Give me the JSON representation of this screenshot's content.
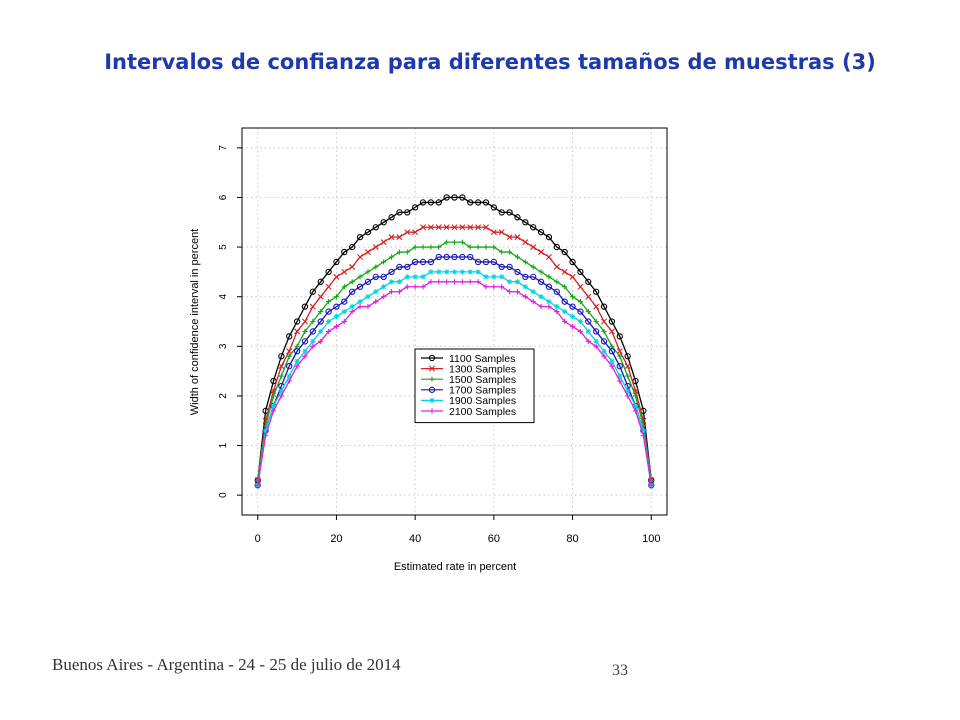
{
  "slide": {
    "title": "Intervalos de confianza para diferentes tamaños de muestras (3)",
    "footer": "Buenos Aires - Argentina - 24 - 25 de julio de 2014",
    "page_number": "33"
  },
  "chart_data": {
    "type": "line",
    "xlabel": "Estimated rate in percent",
    "ylabel": "Width of confidence interval in percent",
    "xlim": [
      -4,
      104
    ],
    "ylim": [
      -0.4,
      7.4
    ],
    "xticks": [
      0,
      20,
      40,
      60,
      80,
      100
    ],
    "yticks": [
      0,
      1,
      2,
      3,
      4,
      5,
      6,
      7
    ],
    "grid": true,
    "legend_position": "center",
    "x": [
      0,
      2,
      4,
      6,
      8,
      10,
      12,
      14,
      16,
      18,
      20,
      22,
      24,
      26,
      28,
      30,
      32,
      34,
      36,
      38,
      40,
      42,
      44,
      46,
      48,
      50,
      52,
      54,
      56,
      58,
      60,
      62,
      64,
      66,
      68,
      70,
      72,
      74,
      76,
      78,
      80,
      82,
      84,
      86,
      88,
      90,
      92,
      94,
      96,
      98,
      100
    ],
    "series": [
      {
        "name": "1100 Samples",
        "color": "#000000",
        "marker": "circle",
        "values": [
          0.3,
          1.7,
          2.3,
          2.8,
          3.2,
          3.5,
          3.8,
          4.1,
          4.3,
          4.5,
          4.7,
          4.9,
          5.0,
          5.2,
          5.3,
          5.4,
          5.5,
          5.6,
          5.7,
          5.7,
          5.8,
          5.9,
          5.9,
          5.9,
          6.0,
          6.0,
          6.0,
          5.9,
          5.9,
          5.9,
          5.8,
          5.7,
          5.7,
          5.6,
          5.5,
          5.4,
          5.3,
          5.2,
          5.0,
          4.9,
          4.7,
          4.5,
          4.3,
          4.1,
          3.8,
          3.5,
          3.2,
          2.8,
          2.3,
          1.7,
          0.3
        ]
      },
      {
        "name": "1300 Samples",
        "color": "#d62020",
        "marker": "x",
        "values": [
          0.3,
          1.5,
          2.1,
          2.6,
          2.9,
          3.3,
          3.5,
          3.8,
          4.0,
          4.2,
          4.4,
          4.5,
          4.6,
          4.8,
          4.9,
          5.0,
          5.1,
          5.2,
          5.2,
          5.3,
          5.3,
          5.4,
          5.4,
          5.4,
          5.4,
          5.4,
          5.4,
          5.4,
          5.4,
          5.4,
          5.3,
          5.3,
          5.2,
          5.2,
          5.1,
          5.0,
          4.9,
          4.8,
          4.6,
          4.5,
          4.4,
          4.2,
          4.0,
          3.8,
          3.5,
          3.3,
          2.9,
          2.6,
          2.1,
          1.5,
          0.3
        ]
      },
      {
        "name": "1500 Samples",
        "color": "#17a817",
        "marker": "plus",
        "values": [
          0.3,
          1.4,
          2.0,
          2.4,
          2.8,
          3.0,
          3.3,
          3.5,
          3.7,
          3.9,
          4.0,
          4.2,
          4.3,
          4.4,
          4.5,
          4.6,
          4.7,
          4.8,
          4.9,
          4.9,
          5.0,
          5.0,
          5.0,
          5.0,
          5.1,
          5.1,
          5.1,
          5.0,
          5.0,
          5.0,
          5.0,
          4.9,
          4.9,
          4.8,
          4.7,
          4.6,
          4.5,
          4.4,
          4.3,
          4.2,
          4.0,
          3.9,
          3.7,
          3.5,
          3.3,
          3.0,
          2.8,
          2.4,
          2.0,
          1.4,
          0.3
        ]
      },
      {
        "name": "1700 Samples",
        "color": "#1414b4",
        "marker": "circle",
        "values": [
          0.2,
          1.3,
          1.8,
          2.2,
          2.6,
          2.9,
          3.1,
          3.3,
          3.5,
          3.7,
          3.8,
          3.9,
          4.1,
          4.2,
          4.3,
          4.4,
          4.4,
          4.5,
          4.6,
          4.6,
          4.7,
          4.7,
          4.7,
          4.8,
          4.8,
          4.8,
          4.8,
          4.8,
          4.7,
          4.7,
          4.7,
          4.6,
          4.6,
          4.5,
          4.4,
          4.4,
          4.3,
          4.2,
          4.1,
          3.9,
          3.8,
          3.7,
          3.5,
          3.3,
          3.1,
          2.9,
          2.6,
          2.2,
          1.8,
          1.3,
          0.2
        ]
      },
      {
        "name": "1900 Samples",
        "color": "#00d6e0",
        "marker": "star",
        "values": [
          0.2,
          1.3,
          1.8,
          2.1,
          2.4,
          2.7,
          2.9,
          3.1,
          3.3,
          3.5,
          3.6,
          3.7,
          3.8,
          3.9,
          4.0,
          4.1,
          4.2,
          4.3,
          4.3,
          4.4,
          4.4,
          4.4,
          4.5,
          4.5,
          4.5,
          4.5,
          4.5,
          4.5,
          4.5,
          4.4,
          4.4,
          4.4,
          4.3,
          4.3,
          4.2,
          4.1,
          4.0,
          3.9,
          3.8,
          3.7,
          3.6,
          3.5,
          3.3,
          3.1,
          2.9,
          2.7,
          2.4,
          2.1,
          1.8,
          1.3,
          0.2
        ]
      },
      {
        "name": "2100 Samples",
        "color": "#e020e0",
        "marker": "plus",
        "values": [
          0.2,
          1.2,
          1.7,
          2.0,
          2.3,
          2.6,
          2.8,
          3.0,
          3.1,
          3.3,
          3.4,
          3.5,
          3.7,
          3.8,
          3.8,
          3.9,
          4.0,
          4.1,
          4.1,
          4.2,
          4.2,
          4.2,
          4.3,
          4.3,
          4.3,
          4.3,
          4.3,
          4.3,
          4.3,
          4.2,
          4.2,
          4.2,
          4.1,
          4.1,
          4.0,
          3.9,
          3.8,
          3.8,
          3.7,
          3.5,
          3.4,
          3.3,
          3.1,
          3.0,
          2.8,
          2.6,
          2.3,
          2.0,
          1.7,
          1.2,
          0.2
        ]
      }
    ]
  }
}
